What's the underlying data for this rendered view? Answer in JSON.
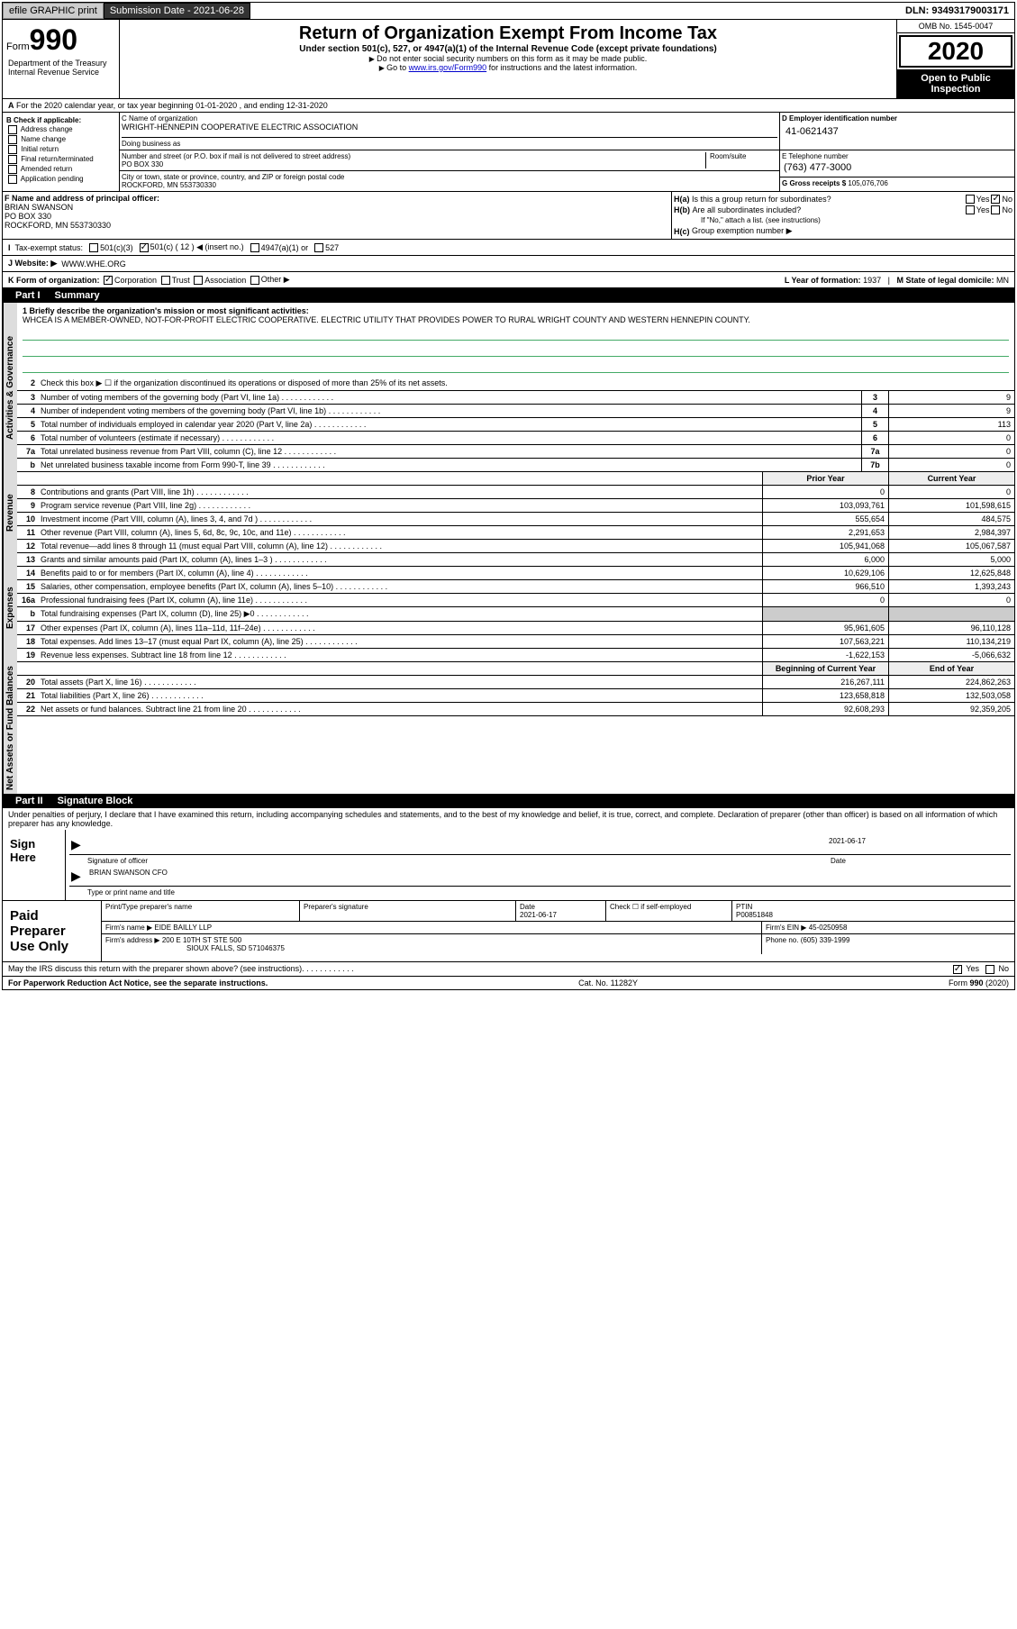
{
  "topbar": {
    "efile": "efile GRAPHIC print",
    "submission_label": "Submission Date - 2021-06-28",
    "dln": "DLN: 93493179003171"
  },
  "header": {
    "form_label": "Form",
    "form_number": "990",
    "title": "Return of Organization Exempt From Income Tax",
    "subtitle": "Under section 501(c), 527, or 4947(a)(1) of the Internal Revenue Code (except private foundations)",
    "note1": "Do not enter social security numbers on this form as it may be made public.",
    "note2_prefix": "Go to ",
    "note2_link": "www.irs.gov/Form990",
    "note2_suffix": " for instructions and the latest information.",
    "omb": "OMB No. 1545-0047",
    "year": "2020",
    "open": "Open to Public Inspection",
    "dept": "Department of the Treasury Internal Revenue Service"
  },
  "row_a": "For the 2020 calendar year, or tax year beginning 01-01-2020   , and ending 12-31-2020",
  "col_b": {
    "label": "B Check if applicable:",
    "opts": [
      "Address change",
      "Name change",
      "Initial return",
      "Final return/terminated",
      "Amended return",
      "Application pending"
    ]
  },
  "org": {
    "name_lab": "C Name of organization",
    "name": "WRIGHT-HENNEPIN COOPERATIVE ELECTRIC ASSOCIATION",
    "dba_lab": "Doing business as",
    "addr_lab": "Number and street (or P.O. box if mail is not delivered to street address)",
    "addr": "PO BOX 330",
    "room_lab": "Room/suite",
    "city_lab": "City or town, state or province, country, and ZIP or foreign postal code",
    "city": "ROCKFORD, MN  553730330"
  },
  "ein": {
    "lab": "D Employer identification number",
    "val": "41-0621437"
  },
  "tel": {
    "lab": "E Telephone number",
    "val": "(763) 477-3000"
  },
  "gross": {
    "lab": "G Gross receipts $",
    "val": "105,076,706"
  },
  "officer": {
    "lab": "F  Name and address of principal officer:",
    "name": "BRIAN SWANSON",
    "addr1": "PO BOX 330",
    "addr2": "ROCKFORD, MN  553730330"
  },
  "h": {
    "a": "Is this a group return for subordinates?",
    "b": "Are all subordinates included?",
    "b_note": "If \"No,\" attach a list. (see instructions)",
    "c": "Group exemption number ▶",
    "yes": "Yes",
    "no": "No"
  },
  "tax_status": {
    "lab": "Tax-exempt status:",
    "c3": "501(c)(3)",
    "c": "501(c) ( 12 ) ◀ (insert no.)",
    "a1": "4947(a)(1) or",
    "s527": "527"
  },
  "website": {
    "lab": "J   Website: ▶",
    "val": "WWW.WHE.ORG"
  },
  "k": {
    "lab": "K Form of organization:",
    "corp": "Corporation",
    "trust": "Trust",
    "assoc": "Association",
    "other": "Other ▶"
  },
  "l": {
    "lab": "L Year of formation:",
    "val": "1937"
  },
  "m": {
    "lab": "M State of legal domicile:",
    "val": "MN"
  },
  "part1": {
    "num": "Part I",
    "title": "Summary"
  },
  "mission": {
    "lab": "1  Briefly describe the organization's mission or most significant activities:",
    "text": "WHCEA IS A MEMBER-OWNED, NOT-FOR-PROFIT ELECTRIC COOPERATIVE. ELECTRIC UTILITY THAT PROVIDES POWER TO RURAL WRIGHT COUNTY AND WESTERN HENNEPIN COUNTY."
  },
  "gov_rows": [
    {
      "n": "2",
      "t": "Check this box ▶ ☐  if the organization discontinued its operations or disposed of more than 25% of its net assets."
    },
    {
      "n": "3",
      "t": "Number of voting members of the governing body (Part VI, line 1a)",
      "bn": "3",
      "v": "9"
    },
    {
      "n": "4",
      "t": "Number of independent voting members of the governing body (Part VI, line 1b)",
      "bn": "4",
      "v": "9"
    },
    {
      "n": "5",
      "t": "Total number of individuals employed in calendar year 2020 (Part V, line 2a)",
      "bn": "5",
      "v": "113"
    },
    {
      "n": "6",
      "t": "Total number of volunteers (estimate if necessary)",
      "bn": "6",
      "v": "0"
    },
    {
      "n": "7a",
      "t": "Total unrelated business revenue from Part VIII, column (C), line 12",
      "bn": "7a",
      "v": "0"
    },
    {
      "n": "b",
      "t": "Net unrelated business taxable income from Form 990-T, line 39",
      "bn": "7b",
      "v": "0"
    }
  ],
  "col_headers": {
    "prior": "Prior Year",
    "current": "Current Year",
    "boy": "Beginning of Current Year",
    "eoy": "End of Year"
  },
  "rev_rows": [
    {
      "n": "8",
      "t": "Contributions and grants (Part VIII, line 1h)",
      "p": "0",
      "c": "0"
    },
    {
      "n": "9",
      "t": "Program service revenue (Part VIII, line 2g)",
      "p": "103,093,761",
      "c": "101,598,615"
    },
    {
      "n": "10",
      "t": "Investment income (Part VIII, column (A), lines 3, 4, and 7d )",
      "p": "555,654",
      "c": "484,575"
    },
    {
      "n": "11",
      "t": "Other revenue (Part VIII, column (A), lines 5, 6d, 8c, 9c, 10c, and 11e)",
      "p": "2,291,653",
      "c": "2,984,397"
    },
    {
      "n": "12",
      "t": "Total revenue—add lines 8 through 11 (must equal Part VIII, column (A), line 12)",
      "p": "105,941,068",
      "c": "105,067,587"
    }
  ],
  "exp_rows": [
    {
      "n": "13",
      "t": "Grants and similar amounts paid (Part IX, column (A), lines 1–3 )",
      "p": "6,000",
      "c": "5,000"
    },
    {
      "n": "14",
      "t": "Benefits paid to or for members (Part IX, column (A), line 4)",
      "p": "10,629,106",
      "c": "12,625,848"
    },
    {
      "n": "15",
      "t": "Salaries, other compensation, employee benefits (Part IX, column (A), lines 5–10)",
      "p": "966,510",
      "c": "1,393,243"
    },
    {
      "n": "16a",
      "t": "Professional fundraising fees (Part IX, column (A), line 11e)",
      "p": "0",
      "c": "0"
    },
    {
      "n": "b",
      "t": "Total fundraising expenses (Part IX, column (D), line 25) ▶0",
      "p": "",
      "c": "",
      "gray": true
    },
    {
      "n": "17",
      "t": "Other expenses (Part IX, column (A), lines 11a–11d, 11f–24e)",
      "p": "95,961,605",
      "c": "96,110,128"
    },
    {
      "n": "18",
      "t": "Total expenses. Add lines 13–17 (must equal Part IX, column (A), line 25)",
      "p": "107,563,221",
      "c": "110,134,219"
    },
    {
      "n": "19",
      "t": "Revenue less expenses. Subtract line 18 from line 12",
      "p": "-1,622,153",
      "c": "-5,066,632"
    }
  ],
  "net_rows": [
    {
      "n": "20",
      "t": "Total assets (Part X, line 16)",
      "p": "216,267,111",
      "c": "224,862,263"
    },
    {
      "n": "21",
      "t": "Total liabilities (Part X, line 26)",
      "p": "123,658,818",
      "c": "132,503,058"
    },
    {
      "n": "22",
      "t": "Net assets or fund balances. Subtract line 21 from line 20",
      "p": "92,608,293",
      "c": "92,359,205"
    }
  ],
  "vert": {
    "gov": "Activities & Governance",
    "rev": "Revenue",
    "exp": "Expenses",
    "net": "Net Assets or Fund Balances"
  },
  "part2": {
    "num": "Part II",
    "title": "Signature Block"
  },
  "sig": {
    "declaration": "Under penalties of perjury, I declare that I have examined this return, including accompanying schedules and statements, and to the best of my knowledge and belief, it is true, correct, and complete. Declaration of preparer (other than officer) is based on all information of which preparer has any knowledge.",
    "sign_here": "Sign Here",
    "sig_officer": "Signature of officer",
    "date": "Date",
    "date_val": "2021-06-17",
    "name": "BRIAN SWANSON CFO",
    "name_lab": "Type or print name and title"
  },
  "paid": {
    "title": "Paid Preparer Use Only",
    "print_lab": "Print/Type preparer's name",
    "sig_lab": "Preparer's signature",
    "date_lab": "Date",
    "date_val": "2021-06-17",
    "check_lab": "Check ☐ if self-employed",
    "ptin_lab": "PTIN",
    "ptin": "P00851848",
    "firm_name_lab": "Firm's name    ▶",
    "firm_name": "EIDE BAILLY LLP",
    "firm_ein_lab": "Firm's EIN ▶",
    "firm_ein": "45-0250958",
    "firm_addr_lab": "Firm's address ▶",
    "firm_addr": "200 E 10TH ST STE 500",
    "firm_city": "SIOUX FALLS, SD  571046375",
    "phone_lab": "Phone no.",
    "phone": "(605) 339-1999"
  },
  "footer": {
    "discuss": "May the IRS discuss this return with the preparer shown above? (see instructions)",
    "yes": "Yes",
    "no": "No",
    "paperwork": "For Paperwork Reduction Act Notice, see the separate instructions.",
    "cat": "Cat. No. 11282Y",
    "form": "Form 990 (2020)"
  }
}
